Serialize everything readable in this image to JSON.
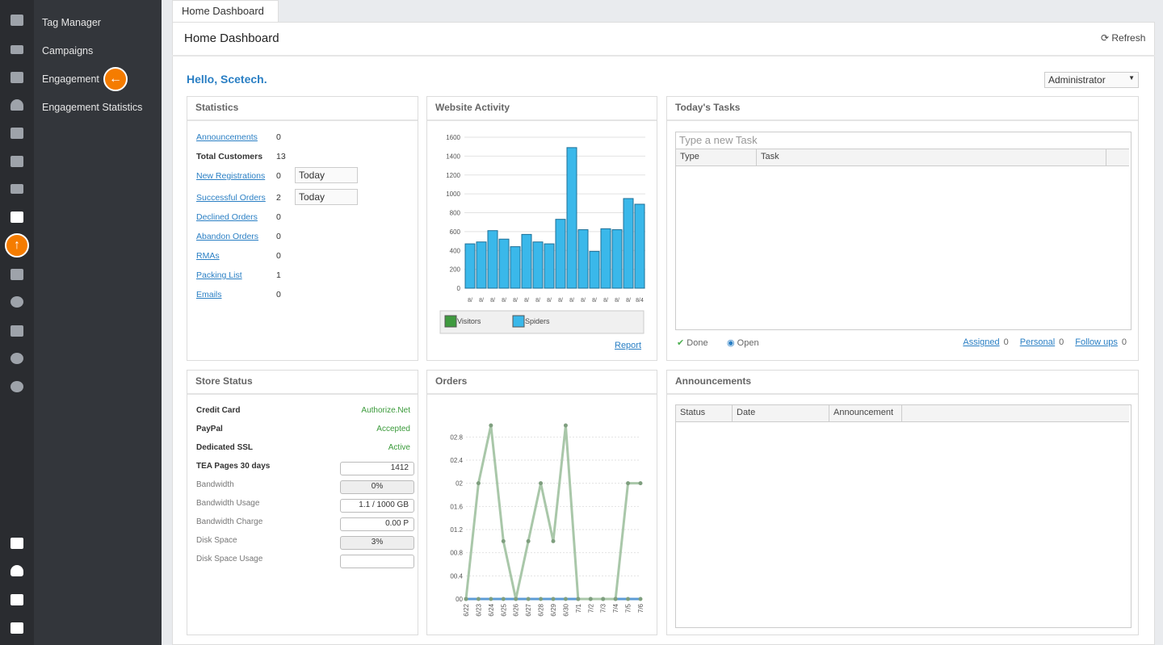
{
  "sidebar": {
    "menu": [
      "Tag Manager",
      "Campaigns",
      "Engagement",
      "Engagement Statistics"
    ]
  },
  "tab": "Home Dashboard",
  "header": {
    "title": "Home Dashboard",
    "refresh": "Refresh"
  },
  "greeting": "Hello, Scetech.",
  "role": "Administrator",
  "statistics": {
    "title": "Statistics",
    "rows": [
      {
        "label": "Announcements",
        "value": 0,
        "link": true
      },
      {
        "label": "Total Customers",
        "value": 13,
        "link": false
      },
      {
        "label": "New Registrations",
        "value": 0,
        "link": true,
        "period": "Today"
      },
      {
        "label": "Successful Orders",
        "value": 2,
        "link": true,
        "period": "Today"
      },
      {
        "label": "Declined Orders",
        "value": 0,
        "link": true
      },
      {
        "label": "Abandon Orders",
        "value": 0,
        "link": true
      },
      {
        "label": "RMAs",
        "value": 0,
        "link": true
      },
      {
        "label": "Packing List",
        "value": 1,
        "link": true
      },
      {
        "label": "Emails",
        "value": 0,
        "link": true
      }
    ]
  },
  "website_activity": {
    "title": "Website Activity",
    "type": "bar",
    "categories": [
      "8/",
      "8/",
      "8/",
      "8/",
      "8/",
      "8/",
      "8/",
      "8/",
      "8/",
      "8/",
      "8/",
      "8/",
      "8/",
      "8/",
      "8/",
      "8/4"
    ],
    "values": [
      470,
      490,
      610,
      520,
      440,
      570,
      490,
      470,
      730,
      1490,
      620,
      390,
      630,
      620,
      950,
      890
    ],
    "color": "#3ab8ea",
    "ylim": [
      0,
      1600
    ],
    "yticks": [
      0,
      200,
      400,
      600,
      800,
      1000,
      1200,
      1400,
      1600
    ],
    "grid": true,
    "legend": [
      {
        "name": "Visitors",
        "color": "#3f9a3f"
      },
      {
        "name": "Spiders",
        "color": "#3ab8ea"
      }
    ],
    "link": "Report"
  },
  "orders": {
    "title": "Orders",
    "type": "line",
    "categories": [
      "6/22",
      "6/23",
      "6/24",
      "6/25",
      "6/26",
      "6/27",
      "6/28",
      "6/29",
      "6/30",
      "7/1",
      "7/2",
      "7/3",
      "7/4",
      "7/5",
      "7/6"
    ],
    "series": [
      {
        "color": "#a9c7a9",
        "values": [
          0,
          2,
          3,
          1,
          0,
          1,
          2,
          1,
          3,
          0,
          0,
          0,
          0,
          2,
          2
        ]
      },
      {
        "color": "#5b9bd5",
        "values": [
          0,
          0,
          0,
          0,
          0,
          0,
          0,
          0,
          0,
          0,
          0,
          0,
          0,
          0,
          0
        ]
      }
    ],
    "ylim": [
      0,
      3
    ],
    "yticks": [
      {
        "value": 0,
        "label": "00"
      },
      {
        "value": 0.4,
        "label": "00.4"
      },
      {
        "value": 0.8,
        "label": "00.8"
      },
      {
        "value": 1.2,
        "label": "01.2"
      },
      {
        "value": 1.6,
        "label": "01.6"
      },
      {
        "value": 2,
        "label": "02"
      },
      {
        "value": 2.4,
        "label": "02.4"
      },
      {
        "value": 2.8,
        "label": "02.8"
      }
    ],
    "grid": true
  },
  "store_status": {
    "title": "Store Status",
    "rows": [
      {
        "label": "Credit Card",
        "value": "Authorize.Net",
        "style": "status"
      },
      {
        "label": "PayPal",
        "value": "Accepted",
        "style": "status"
      },
      {
        "label": "Dedicated SSL",
        "value": "Active",
        "style": "status"
      },
      {
        "label": "TEA Pages 30 days",
        "value": "1412",
        "style": "box"
      },
      {
        "label": "Bandwidth",
        "value": "0%",
        "style": "bar"
      },
      {
        "label": "Bandwidth Usage",
        "value": "1.1 / 1000 GB",
        "style": "box"
      },
      {
        "label": "Bandwidth Charge",
        "value": "0.00 P",
        "style": "box"
      },
      {
        "label": "Disk Space",
        "value": "3%",
        "style": "bar"
      },
      {
        "label": "Disk Space Usage",
        "style": "box"
      }
    ]
  },
  "tasks": {
    "title": "Today's Tasks",
    "placeholder": "Type a new Task",
    "columns": [
      "Type",
      "Task"
    ],
    "done": "Done",
    "open": "Open",
    "filters": [
      {
        "label": "Assigned",
        "value": 0
      },
      {
        "label": "Personal",
        "value": 0
      },
      {
        "label": "Follow ups",
        "value": 0
      }
    ]
  },
  "announcements": {
    "title": "Announcements",
    "columns": [
      "Status",
      "Date",
      "Announcement"
    ]
  }
}
